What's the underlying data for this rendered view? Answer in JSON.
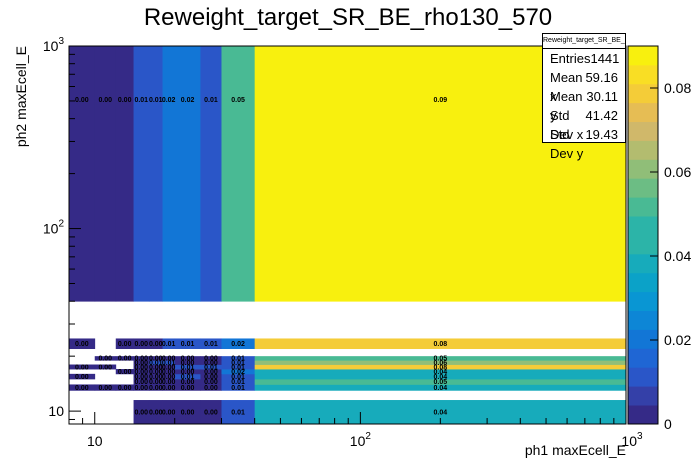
{
  "chart_data": {
    "type": "heatmap",
    "title": "Reweight_target_SR_BE_rho130_570",
    "xlabel": "ph1 maxEcell_E",
    "ylabel": "ph2 maxEcell_E",
    "xscale": "log",
    "yscale": "log",
    "xlim": [
      8,
      1000
    ],
    "ylim": [
      8.5,
      1000
    ],
    "x_tick_labels": [
      "10",
      "10^2",
      "10^3"
    ],
    "y_tick_labels": [
      "10",
      "10^2",
      "10^3"
    ],
    "x_edges": [
      8,
      10,
      12,
      14,
      16,
      18,
      20,
      25,
      30,
      40,
      1000
    ],
    "y_edges": [
      8.5,
      11.5,
      13,
      14,
      15,
      16,
      17,
      18,
      19,
      20,
      22,
      25,
      28,
      32,
      40,
      1000
    ],
    "z_values": [
      [
        null,
        null,
        null,
        0.0,
        0.0,
        0.0,
        0.0,
        0.0,
        0.01,
        0.04
      ],
      [
        0.0,
        0.0,
        0.0,
        0.0,
        0.0,
        0.0,
        0.0,
        0.0,
        0.01,
        0.04
      ],
      [
        null,
        null,
        null,
        0.0,
        0.0,
        0.0,
        0.0,
        0.0,
        0.01,
        0.05
      ],
      [
        0.0,
        null,
        null,
        0.0,
        0.0,
        0.0,
        0.01,
        0.0,
        0.01,
        0.04
      ],
      [
        null,
        null,
        0.0,
        0.0,
        0.0,
        0.0,
        0.0,
        0.0,
        0.02,
        0.04
      ],
      [
        0.0,
        0.0,
        null,
        0.0,
        0.0,
        0.0,
        0.01,
        0.01,
        0.01,
        0.08
      ],
      [
        null,
        null,
        null,
        0.0,
        0.01,
        0.01,
        0.0,
        0.0,
        0.01,
        0.06
      ],
      [
        null,
        0.0,
        0.0,
        0.0,
        0.0,
        0.0,
        0.0,
        0.0,
        0.01,
        0.05
      ],
      [
        0.0,
        null,
        0.0,
        0.0,
        0.0,
        0.01,
        0.01,
        0.01,
        0.02,
        0.08
      ],
      [
        0.0,
        0.0,
        0.0,
        0.01,
        0.01,
        0.02,
        0.02,
        0.01,
        0.05,
        0.09
      ]
    ],
    "z_column_order": "x bins left to right",
    "z_row_order": "rows listed bottom to top; the top row covers y 40-1000",
    "row_bins_used": [
      0,
      2,
      3,
      4,
      5,
      6,
      7,
      8,
      10,
      14
    ],
    "colorbar": {
      "range": [
        0,
        0.09
      ],
      "ticks": [
        "0",
        "0.02",
        "0.04",
        "0.06",
        "0.08"
      ]
    },
    "stats": {
      "name": "Reweight_target_SR_BE_rho130_570",
      "entries_label": "Entries",
      "entries": "1441",
      "meanx_label": "Mean x",
      "meanx": "59.16",
      "meany_label": "Mean y",
      "meany": "30.11",
      "stdx_label": "Std Dev x",
      "stdx": "41.42",
      "stdy_label": "Std Dev y",
      "stdy": "19.43"
    }
  }
}
